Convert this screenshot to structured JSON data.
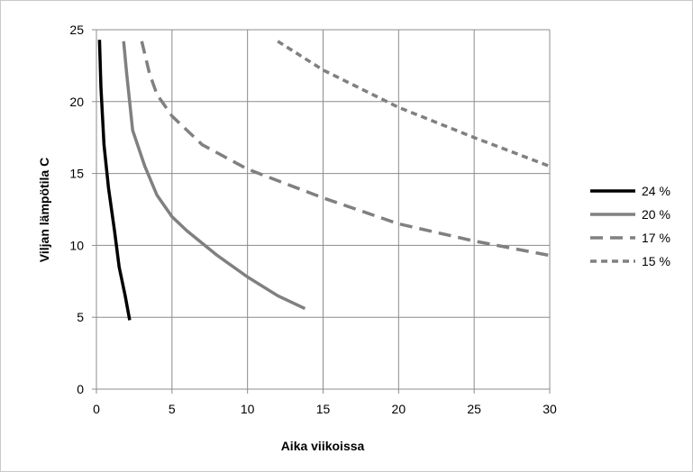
{
  "chart_data": {
    "type": "line",
    "title": "",
    "xlabel": "Aika viikoissa",
    "ylabel": "Viljan lämpötila C",
    "xlim": [
      0,
      30
    ],
    "ylim": [
      0,
      25
    ],
    "x_ticks": [
      "0",
      "5",
      "10",
      "15",
      "20",
      "25",
      "30"
    ],
    "y_ticks": [
      "0",
      "5",
      "10",
      "15",
      "20",
      "25"
    ],
    "grid": true,
    "legend_position": "right",
    "series": [
      {
        "name": "24 %",
        "color": "#000000",
        "dash": "solid",
        "points": [
          [
            0.2,
            24.3
          ],
          [
            0.3,
            21
          ],
          [
            0.5,
            17
          ],
          [
            0.8,
            14
          ],
          [
            1.2,
            11
          ],
          [
            1.5,
            8.5
          ],
          [
            1.9,
            6.5
          ],
          [
            2.2,
            4.8
          ]
        ]
      },
      {
        "name": "20 %",
        "color": "#808080",
        "dash": "solid",
        "points": [
          [
            1.8,
            24.2
          ],
          [
            2.0,
            22
          ],
          [
            2.4,
            18
          ],
          [
            3.2,
            15.5
          ],
          [
            4.0,
            13.5
          ],
          [
            5.0,
            12
          ],
          [
            6.0,
            11
          ],
          [
            8.0,
            9.3
          ],
          [
            10.0,
            7.8
          ],
          [
            12.0,
            6.5
          ],
          [
            13.8,
            5.6
          ]
        ]
      },
      {
        "name": "17 %",
        "color": "#808080",
        "dash": "long-dash",
        "points": [
          [
            3.0,
            24.2
          ],
          [
            3.5,
            22
          ],
          [
            4.0,
            20.5
          ],
          [
            5.0,
            19
          ],
          [
            7.0,
            17
          ],
          [
            10.0,
            15.3
          ],
          [
            15.0,
            13.3
          ],
          [
            20.0,
            11.5
          ],
          [
            25.0,
            10.3
          ],
          [
            30.0,
            9.3
          ]
        ]
      },
      {
        "name": "15 %",
        "color": "#808080",
        "dash": "short-dash",
        "points": [
          [
            12.0,
            24.2
          ],
          [
            15.0,
            22.2
          ],
          [
            20.0,
            19.6
          ],
          [
            25.0,
            17.5
          ],
          [
            30.0,
            15.5
          ]
        ]
      }
    ]
  }
}
